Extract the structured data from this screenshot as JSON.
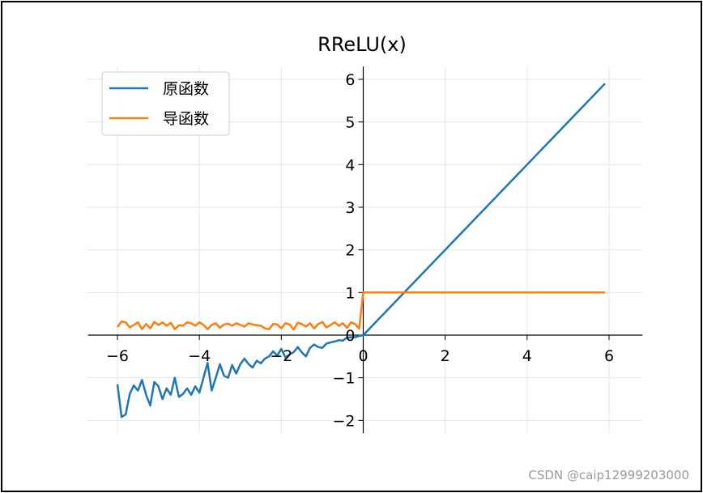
{
  "watermark": "CSDN @caip12999203000",
  "chart_data": {
    "type": "line",
    "title": "RReLU(x)",
    "xlabel": "",
    "ylabel": "",
    "xlim": [
      -6.2,
      6.3
    ],
    "ylim": [
      -2.3,
      6.3
    ],
    "xticks": [
      -6,
      -4,
      -2,
      0,
      2,
      4,
      6
    ],
    "yticks": [
      -2,
      -1,
      0,
      1,
      2,
      3,
      4,
      5,
      6
    ],
    "grid": true,
    "spines": "centered",
    "legend": "top-left",
    "colors": {
      "original": "#1f77b4",
      "derivative": "#ff7f0e"
    },
    "x": [
      -6.0,
      -5.9,
      -5.8,
      -5.7,
      -5.6,
      -5.5,
      -5.4,
      -5.3,
      -5.2,
      -5.1,
      -5.0,
      -4.9,
      -4.8,
      -4.7,
      -4.6,
      -4.5,
      -4.4,
      -4.3,
      -4.2,
      -4.1,
      -4.0,
      -3.9,
      -3.8,
      -3.7,
      -3.6,
      -3.5,
      -3.4,
      -3.3,
      -3.2,
      -3.1,
      -3.0,
      -2.9,
      -2.8,
      -2.7,
      -2.6,
      -2.5,
      -2.4,
      -2.3,
      -2.2,
      -2.1,
      -2.0,
      -1.9,
      -1.8,
      -1.7,
      -1.6,
      -1.5,
      -1.4,
      -1.3,
      -1.2,
      -1.1,
      -1.0,
      -0.9,
      -0.8,
      -0.7,
      -0.6,
      -0.5,
      -0.4,
      -0.3,
      -0.2,
      -0.1,
      0.0,
      0.1,
      0.2,
      0.3,
      0.4,
      0.5,
      0.6,
      0.7,
      0.8,
      0.9,
      1.0,
      1.1,
      1.2,
      1.3,
      1.4,
      1.5,
      1.6,
      1.7,
      1.8,
      1.9,
      2.0,
      2.1,
      2.2,
      2.3,
      2.4,
      2.5,
      2.6,
      2.7,
      2.8,
      2.9,
      3.0,
      3.1,
      3.2,
      3.3,
      3.4,
      3.5,
      3.6,
      3.7,
      3.8,
      3.9,
      4.0,
      4.1,
      4.2,
      4.3,
      4.4,
      4.5,
      4.6,
      4.7,
      4.8,
      4.9,
      5.0,
      5.1,
      5.2,
      5.3,
      5.4,
      5.5,
      5.6,
      5.7,
      5.8,
      5.9
    ],
    "series": [
      {
        "name": "原函数",
        "values": [
          -1.15,
          -1.92,
          -1.86,
          -1.38,
          -1.18,
          -1.3,
          -1.05,
          -1.4,
          -1.65,
          -1.1,
          -1.2,
          -1.5,
          -1.25,
          -1.4,
          -1.0,
          -1.45,
          -1.38,
          -1.25,
          -1.4,
          -1.2,
          -1.35,
          -1.0,
          -0.65,
          -1.3,
          -1.0,
          -0.68,
          -0.95,
          -1.0,
          -0.7,
          -0.9,
          -0.68,
          -0.55,
          -0.68,
          -0.76,
          -0.6,
          -0.66,
          -0.55,
          -0.5,
          -0.38,
          -0.48,
          -0.32,
          -0.52,
          -0.45,
          -0.4,
          -0.28,
          -0.4,
          -0.5,
          -0.3,
          -0.22,
          -0.28,
          -0.3,
          -0.2,
          -0.17,
          -0.15,
          -0.12,
          -0.13,
          -0.06,
          -0.05,
          -0.05,
          -0.02,
          0.0,
          0.1,
          0.2,
          0.3,
          0.4,
          0.5,
          0.6,
          0.7,
          0.8,
          0.9,
          1.0,
          1.1,
          1.2,
          1.3,
          1.4,
          1.5,
          1.6,
          1.7,
          1.8,
          1.9,
          2.0,
          2.1,
          2.2,
          2.3,
          2.4,
          2.5,
          2.6,
          2.7,
          2.8,
          2.9,
          3.0,
          3.1,
          3.2,
          3.3,
          3.4,
          3.5,
          3.6,
          3.7,
          3.8,
          3.9,
          4.0,
          4.1,
          4.2,
          4.3,
          4.4,
          4.5,
          4.6,
          4.7,
          4.8,
          4.9,
          5.0,
          5.1,
          5.2,
          5.3,
          5.4,
          5.5,
          5.6,
          5.7,
          5.8,
          5.9
        ]
      },
      {
        "name": "导函数",
        "values": [
          0.19,
          0.32,
          0.3,
          0.18,
          0.24,
          0.3,
          0.14,
          0.26,
          0.16,
          0.31,
          0.24,
          0.3,
          0.22,
          0.29,
          0.14,
          0.23,
          0.22,
          0.3,
          0.28,
          0.22,
          0.3,
          0.24,
          0.14,
          0.24,
          0.28,
          0.17,
          0.25,
          0.27,
          0.22,
          0.28,
          0.24,
          0.2,
          0.28,
          0.25,
          0.23,
          0.22,
          0.16,
          0.14,
          0.26,
          0.25,
          0.16,
          0.28,
          0.25,
          0.13,
          0.29,
          0.26,
          0.2,
          0.28,
          0.16,
          0.26,
          0.31,
          0.18,
          0.24,
          0.3,
          0.22,
          0.28,
          0.17,
          0.3,
          0.26,
          0.15,
          1.0,
          1.0,
          1.0,
          1.0,
          1.0,
          1.0,
          1.0,
          1.0,
          1.0,
          1.0,
          1.0,
          1.0,
          1.0,
          1.0,
          1.0,
          1.0,
          1.0,
          1.0,
          1.0,
          1.0,
          1.0,
          1.0,
          1.0,
          1.0,
          1.0,
          1.0,
          1.0,
          1.0,
          1.0,
          1.0,
          1.0,
          1.0,
          1.0,
          1.0,
          1.0,
          1.0,
          1.0,
          1.0,
          1.0,
          1.0,
          1.0,
          1.0,
          1.0,
          1.0,
          1.0,
          1.0,
          1.0,
          1.0,
          1.0,
          1.0,
          1.0,
          1.0,
          1.0,
          1.0,
          1.0,
          1.0,
          1.0,
          1.0,
          1.0,
          1.0
        ]
      }
    ]
  }
}
